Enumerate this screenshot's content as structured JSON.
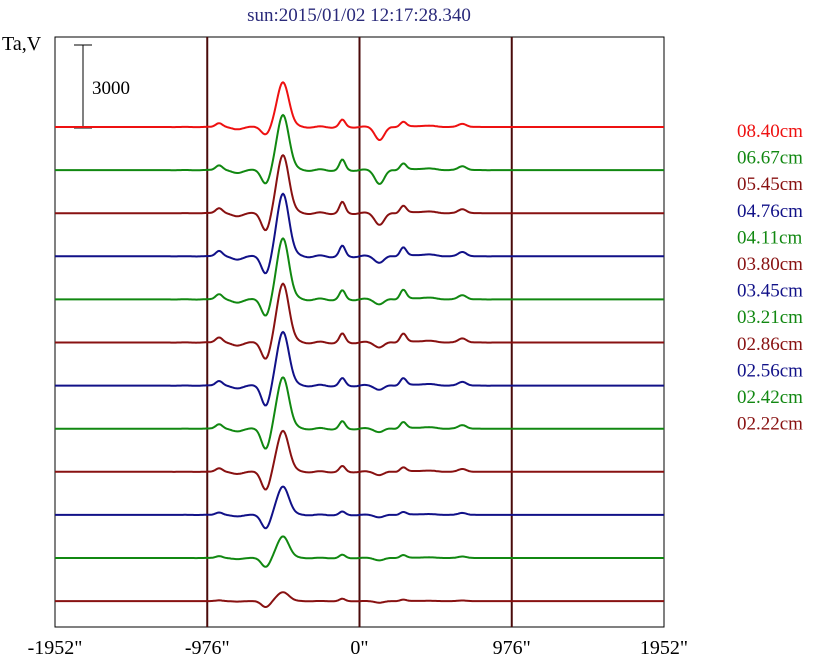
{
  "title": "sun:2015/01/02 12:17:28.340",
  "colors": {
    "title": "#2a2a7a",
    "red": "#ee1111",
    "green": "#118811",
    "maroon": "#881111",
    "blue": "#111188",
    "axis": "#000000",
    "vline": "#4a0a0a"
  },
  "chart_data": {
    "type": "line",
    "ylabel": "Ta,V",
    "xlim": [
      -1952,
      1952
    ],
    "x_ticks": [
      {
        "value": -1952,
        "label": "-1952\""
      },
      {
        "value": -976,
        "label": "-976\""
      },
      {
        "value": 0,
        "label": "0\""
      },
      {
        "value": 976,
        "label": "976\""
      },
      {
        "value": 1952,
        "label": "1952\""
      }
    ],
    "vertical_lines": [
      -976,
      0,
      976
    ],
    "scale_bar": {
      "value": 3000,
      "label": "3000"
    },
    "legend_position": "right",
    "series": [
      {
        "name": "08.40cm",
        "color": "#ee1111",
        "peak": 3000,
        "dip": -500,
        "f1": 450,
        "f2": -850,
        "f3": 350
      },
      {
        "name": "06.67cm",
        "color": "#118811",
        "peak": 3700,
        "dip": -900,
        "f1": 650,
        "f2": -900,
        "f3": 450
      },
      {
        "name": "05.45cm",
        "color": "#881111",
        "peak": 3900,
        "dip": -1150,
        "f1": 700,
        "f2": -750,
        "f3": 500
      },
      {
        "name": "04.76cm",
        "color": "#111188",
        "peak": 4200,
        "dip": -1150,
        "f1": 650,
        "f2": -400,
        "f3": 600
      },
      {
        "name": "04.11cm",
        "color": "#118811",
        "peak": 4100,
        "dip": -1100,
        "f1": 550,
        "f2": -300,
        "f3": 650
      },
      {
        "name": "03.80cm",
        "color": "#881111",
        "peak": 3950,
        "dip": -1100,
        "f1": 550,
        "f2": -300,
        "f3": 600
      },
      {
        "name": "03.45cm",
        "color": "#111188",
        "peak": 3600,
        "dip": -1350,
        "f1": 450,
        "f2": -250,
        "f3": 500
      },
      {
        "name": "03.21cm",
        "color": "#118811",
        "peak": 3450,
        "dip": -1350,
        "f1": 450,
        "f2": -200,
        "f3": 450
      },
      {
        "name": "02.86cm",
        "color": "#881111",
        "peak": 2750,
        "dip": -1200,
        "f1": 350,
        "f2": -200,
        "f3": 300
      },
      {
        "name": "02.56cm",
        "color": "#111188",
        "peak": 1900,
        "dip": -900,
        "f1": 200,
        "f2": -150,
        "f3": 200
      },
      {
        "name": "02.42cm",
        "color": "#118811",
        "peak": 1450,
        "dip": -600,
        "f1": 200,
        "f2": -150,
        "f3": 200
      },
      {
        "name": "02.22cm",
        "color": "#881111",
        "peak": 600,
        "dip": -400,
        "f1": 150,
        "f2": -100,
        "f3": 100
      }
    ]
  }
}
